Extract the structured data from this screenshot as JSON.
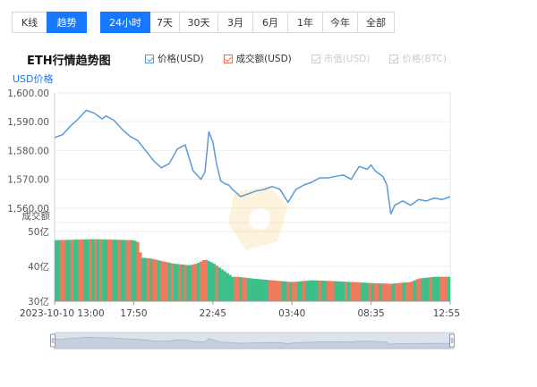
{
  "mode_toggle": {
    "buttons": [
      {
        "label": "K线",
        "active": false
      },
      {
        "label": "趋势",
        "active": true
      }
    ]
  },
  "range_toggle": {
    "buttons": [
      {
        "label": "24小时",
        "active": true
      },
      {
        "label": "7天",
        "active": false
      },
      {
        "label": "30天",
        "active": false
      },
      {
        "label": "3月",
        "active": false
      },
      {
        "label": "6月",
        "active": false
      },
      {
        "label": "1年",
        "active": false
      },
      {
        "label": "今年",
        "active": false
      },
      {
        "label": "全部",
        "active": false
      }
    ]
  },
  "legend": [
    {
      "label": "价格(USD)",
      "checked": true,
      "color": "#5b9bd5"
    },
    {
      "label": "成交额(USD)",
      "checked": true,
      "color": "#e8735a"
    },
    {
      "label": "市值(USD)",
      "checked": false,
      "color": "#cccccc"
    },
    {
      "label": "价格(BTC)",
      "checked": false,
      "color": "#cccccc"
    }
  ],
  "chart_data": {
    "type": "line",
    "title": "ETH行情趋势图",
    "price_axis_label": "USD价格",
    "volume_axis_label": "成交额",
    "price_ylim": [
      1555,
      1600
    ],
    "price_ticks": [
      "1,600.00",
      "1,590.00",
      "1,580.00",
      "1,570.00",
      "1,560.00"
    ],
    "price_tick_values": [
      1600,
      1590,
      1580,
      1570,
      1560
    ],
    "volume_ylim": [
      30,
      50
    ],
    "volume_ticks": [
      "50亿",
      "40亿",
      "30亿"
    ],
    "volume_tick_values": [
      50,
      40,
      30
    ],
    "x_ticks": [
      "2023-10-10 13:00",
      "17:50",
      "22:45",
      "03:40",
      "08:35",
      "12:55"
    ],
    "x_tick_positions": [
      0,
      20,
      40,
      60,
      80,
      100
    ],
    "price_series": {
      "name": "价格(USD)",
      "color": "#5b9bd5",
      "x": [
        0,
        2,
        4,
        6,
        8,
        10,
        12,
        13,
        15,
        17,
        19,
        21,
        23,
        25,
        27,
        29,
        31,
        33,
        35,
        37,
        38,
        39,
        40,
        41,
        42,
        43,
        44,
        45,
        47,
        49,
        51,
        53,
        55,
        57,
        59,
        61,
        63,
        65,
        67,
        69,
        71,
        73,
        75,
        77,
        79,
        80,
        81,
        82,
        83,
        84,
        85,
        86,
        88,
        90,
        92,
        94,
        96,
        98,
        100
      ],
      "values": [
        1584.5,
        1585.5,
        1588.5,
        1591,
        1594,
        1593,
        1591,
        1592,
        1590.5,
        1587.5,
        1585,
        1583.5,
        1580,
        1576.5,
        1574,
        1575.5,
        1580.5,
        1582,
        1573,
        1570,
        1572.5,
        1586.5,
        1583,
        1575,
        1569.5,
        1568.5,
        1568,
        1566.5,
        1564,
        1565,
        1566,
        1566.5,
        1567.5,
        1566.5,
        1562,
        1566.5,
        1568,
        1569,
        1570.5,
        1570.5,
        1571,
        1571.5,
        1570,
        1574.5,
        1573.5,
        1575,
        1573,
        1572,
        1571,
        1568,
        1558,
        1561,
        1562.5,
        1561,
        1563,
        1562.5,
        1563.5,
        1563,
        1564
      ]
    },
    "volume_series": {
      "name": "成交额(USD)",
      "up_color": "#3cbf88",
      "down_color": "#f07a5d",
      "x": [
        0,
        10,
        20,
        21,
        22,
        24,
        26,
        30,
        34,
        36,
        38,
        40,
        45,
        46,
        48,
        50,
        55,
        60,
        65,
        70,
        75,
        80,
        85,
        90,
        92,
        96,
        100
      ],
      "values": [
        47.5,
        47.8,
        47.5,
        47,
        42.5,
        42.3,
        41.8,
        40.8,
        40.3,
        40.8,
        42,
        41,
        37,
        37,
        36.8,
        36.5,
        36,
        35.5,
        36,
        35.8,
        35.5,
        35.2,
        35,
        35.5,
        36.5,
        37,
        37
      ]
    },
    "grid": true
  },
  "navigator": {
    "left_handle": "drag-handle",
    "right_handle": "drag-handle"
  }
}
